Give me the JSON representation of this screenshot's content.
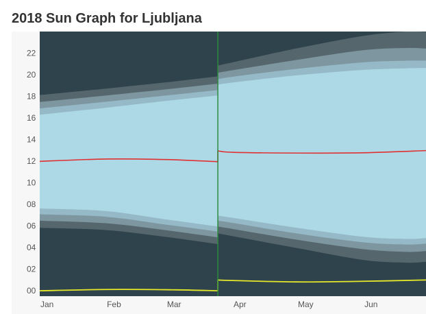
{
  "page": {
    "title": "2018 Sun Graph for Ljubljana"
  },
  "chart_data": {
    "type": "area",
    "title": "2018 Sun Graph for Ljubljana",
    "xlabel": "",
    "ylabel": "",
    "x_unit": "day of year 2018",
    "x_range": [
      1,
      181
    ],
    "ylim": [
      -0.5,
      24
    ],
    "y_ticks": [
      "00",
      "02",
      "04",
      "06",
      "08",
      "10",
      "12",
      "14",
      "16",
      "18",
      "20",
      "22"
    ],
    "x_ticks": [
      {
        "label": "Jan",
        "day": 1
      },
      {
        "label": "Feb",
        "day": 32
      },
      {
        "label": "Mar",
        "day": 60
      },
      {
        "label": "Apr",
        "day": 91
      },
      {
        "label": "May",
        "day": 121
      },
      {
        "label": "Jun",
        "day": 152
      }
    ],
    "dst_change_day": 84,
    "colors": {
      "night": "#2e434c",
      "astronomical_twilight": "#56666d",
      "nautical_twilight": "#7d969f",
      "civil_twilight": "#95b9c7",
      "daylight": "#add8e6",
      "solar_noon": "#e03030",
      "moon_line": "#e8e82a",
      "dst_marker": "#2e8b3e",
      "panel_bg": "#f7f7f7"
    },
    "series": [
      {
        "name": "astronomical_dawn",
        "points": [
          [
            1,
            5.82
          ],
          [
            32,
            5.62
          ],
          [
            60,
            4.98
          ],
          [
            84,
            4.32
          ],
          [
            84,
            5.32
          ],
          [
            91,
            5.05
          ],
          [
            121,
            3.95
          ],
          [
            152,
            2.85
          ],
          [
            172,
            2.6
          ],
          [
            181,
            2.68
          ]
        ]
      },
      {
        "name": "nautical_dawn",
        "points": [
          [
            1,
            6.48
          ],
          [
            32,
            6.25
          ],
          [
            60,
            5.6
          ],
          [
            84,
            4.95
          ],
          [
            84,
            5.95
          ],
          [
            91,
            5.72
          ],
          [
            121,
            4.72
          ],
          [
            152,
            3.85
          ],
          [
            172,
            3.6
          ],
          [
            181,
            3.68
          ]
        ]
      },
      {
        "name": "civil_dawn",
        "points": [
          [
            1,
            7.08
          ],
          [
            32,
            6.85
          ],
          [
            60,
            6.12
          ],
          [
            84,
            5.48
          ],
          [
            84,
            6.48
          ],
          [
            91,
            6.28
          ],
          [
            121,
            5.3
          ],
          [
            152,
            4.48
          ],
          [
            172,
            4.28
          ],
          [
            181,
            4.36
          ]
        ]
      },
      {
        "name": "sunrise",
        "points": [
          [
            1,
            7.62
          ],
          [
            32,
            7.38
          ],
          [
            60,
            6.6
          ],
          [
            84,
            5.95
          ],
          [
            84,
            6.95
          ],
          [
            91,
            6.75
          ],
          [
            121,
            5.82
          ],
          [
            152,
            5.0
          ],
          [
            172,
            4.8
          ],
          [
            181,
            4.88
          ]
        ]
      },
      {
        "name": "solar_noon",
        "points": [
          [
            1,
            11.98
          ],
          [
            32,
            12.2
          ],
          [
            60,
            12.15
          ],
          [
            84,
            11.95
          ],
          [
            84,
            12.95
          ],
          [
            91,
            12.82
          ],
          [
            121,
            12.75
          ],
          [
            152,
            12.78
          ],
          [
            181,
            12.98
          ]
        ]
      },
      {
        "name": "sunset",
        "points": [
          [
            1,
            16.3
          ],
          [
            32,
            16.95
          ],
          [
            60,
            17.58
          ],
          [
            84,
            18.08
          ],
          [
            84,
            19.08
          ],
          [
            91,
            19.28
          ],
          [
            121,
            19.95
          ],
          [
            152,
            20.45
          ],
          [
            172,
            20.6
          ],
          [
            181,
            20.62
          ]
        ]
      },
      {
        "name": "civil_dusk",
        "points": [
          [
            1,
            16.88
          ],
          [
            32,
            17.5
          ],
          [
            60,
            18.08
          ],
          [
            84,
            18.58
          ],
          [
            84,
            19.58
          ],
          [
            91,
            19.82
          ],
          [
            121,
            20.55
          ],
          [
            152,
            21.15
          ],
          [
            172,
            21.3
          ],
          [
            181,
            21.3
          ]
        ]
      },
      {
        "name": "nautical_dusk",
        "points": [
          [
            1,
            17.48
          ],
          [
            32,
            18.08
          ],
          [
            60,
            18.65
          ],
          [
            84,
            19.18
          ],
          [
            84,
            20.18
          ],
          [
            91,
            20.42
          ],
          [
            121,
            21.38
          ],
          [
            152,
            22.28
          ],
          [
            172,
            22.48
          ],
          [
            181,
            22.42
          ]
        ]
      },
      {
        "name": "astronomical_dusk",
        "points": [
          [
            1,
            18.12
          ],
          [
            32,
            18.72
          ],
          [
            60,
            19.3
          ],
          [
            84,
            19.85
          ],
          [
            84,
            20.85
          ],
          [
            91,
            21.15
          ],
          [
            121,
            22.45
          ],
          [
            152,
            23.6
          ],
          [
            172,
            24.0
          ],
          [
            181,
            23.95
          ]
        ]
      },
      {
        "name": "moon_line",
        "points": [
          [
            1,
            0.0
          ],
          [
            32,
            0.12
          ],
          [
            60,
            0.1
          ],
          [
            84,
            0.0
          ],
          [
            84,
            1.0
          ],
          [
            91,
            0.95
          ],
          [
            121,
            0.82
          ],
          [
            152,
            0.88
          ],
          [
            181,
            1.0
          ]
        ]
      }
    ]
  }
}
